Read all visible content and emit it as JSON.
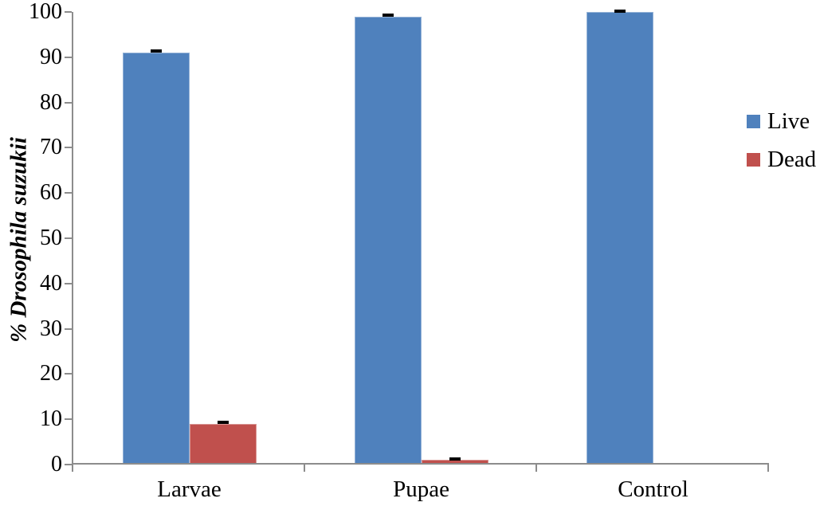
{
  "chart_data": {
    "type": "bar",
    "categories": [
      "Larvae",
      "Pupae",
      "Control"
    ],
    "series": [
      {
        "name": "Live",
        "color": "#4F81BD",
        "border_color": "#95B3D7",
        "values": [
          91,
          99,
          100
        ],
        "errors": [
          0.5,
          0.5,
          0.3
        ]
      },
      {
        "name": "Dead",
        "color": "#C0504D",
        "border_color": "#D99694",
        "values": [
          9,
          1,
          0
        ],
        "errors": [
          0.5,
          0.4,
          0
        ]
      }
    ],
    "title": "",
    "xlabel": "",
    "ylabel": "% Drosophila suzukii",
    "ylim": [
      0,
      100
    ],
    "ytick_step": 10,
    "yticks": [
      0,
      10,
      20,
      30,
      40,
      50,
      60,
      70,
      80,
      90,
      100
    ],
    "grid": false,
    "legend_position": "right",
    "legend_entries": [
      "Live",
      "Dead"
    ],
    "axis_color": "#8C8C8C",
    "error_bar_color": "#000000",
    "text_color": "#000000",
    "background_color": "#FFFFFF"
  }
}
